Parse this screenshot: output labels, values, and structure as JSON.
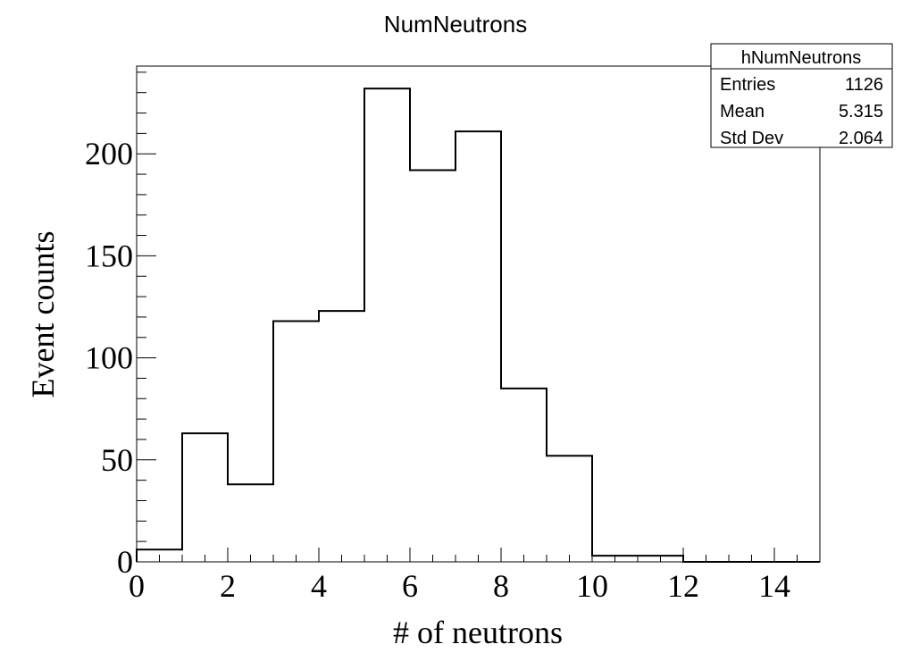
{
  "chart_data": {
    "type": "bar",
    "title": "NumNeutrons",
    "xlabel": "# of neutrons",
    "ylabel": "Event counts",
    "xlim": [
      0,
      15
    ],
    "ylim": [
      0,
      243
    ],
    "x_ticks": [
      0,
      2,
      4,
      6,
      8,
      10,
      12,
      14
    ],
    "y_ticks": [
      0,
      50,
      100,
      150,
      200
    ],
    "bin_edges": [
      0,
      1,
      2,
      3,
      4,
      5,
      6,
      7,
      8,
      9,
      10,
      11,
      12,
      13,
      14,
      15
    ],
    "values": [
      6,
      63,
      38,
      118,
      123,
      232,
      192,
      211,
      85,
      52,
      3,
      3,
      0,
      0,
      0
    ],
    "grid": false,
    "stats_box": {
      "name": "hNumNeutrons",
      "rows": [
        {
          "label": "Entries",
          "value": "1126"
        },
        {
          "label": "Mean",
          "value": "5.315"
        },
        {
          "label": "Std Dev",
          "value": "2.064"
        }
      ]
    }
  }
}
